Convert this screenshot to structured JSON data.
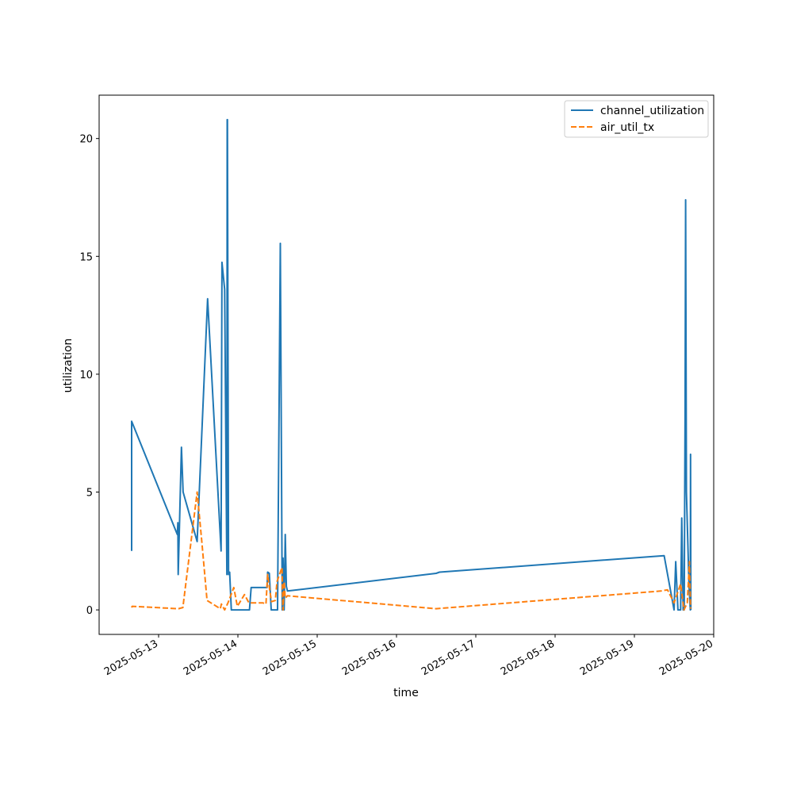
{
  "chart_data": {
    "type": "line",
    "title": "",
    "xlabel": "time",
    "ylabel": "utilization",
    "x_type": "datetime",
    "xlim": [
      "2025-05-12T06:00",
      "2025-05-20T00:00"
    ],
    "ylim": [
      -1.04,
      21.84
    ],
    "x_ticks": [
      "2025-05-13",
      "2025-05-14",
      "2025-05-15",
      "2025-05-16",
      "2025-05-17",
      "2025-05-18",
      "2025-05-19",
      "2025-05-20"
    ],
    "y_ticks": [
      0,
      5,
      10,
      15,
      20
    ],
    "grid": false,
    "legend_position": "top-right",
    "series": [
      {
        "name": "channel_utilization",
        "color": "#1f77b4",
        "style": "solid",
        "points": [
          [
            "2025-05-12T15:50",
            2.5
          ],
          [
            "2025-05-12T15:50",
            8.0
          ],
          [
            "2025-05-13T05:40",
            3.2
          ],
          [
            "2025-05-13T05:50",
            3.7
          ],
          [
            "2025-05-13T05:55",
            1.5
          ],
          [
            "2025-05-13T06:20",
            3.7
          ],
          [
            "2025-05-13T06:55",
            6.9
          ],
          [
            "2025-05-13T07:25",
            5.0
          ],
          [
            "2025-05-13T11:40",
            2.9
          ],
          [
            "2025-05-13T14:50",
            13.2
          ],
          [
            "2025-05-13T18:55",
            2.5
          ],
          [
            "2025-05-13T19:10",
            14.75
          ],
          [
            "2025-05-13T20:00",
            13.6
          ],
          [
            "2025-05-13T20:40",
            1.5
          ],
          [
            "2025-05-13T20:45",
            20.8
          ],
          [
            "2025-05-13T20:50",
            20.8
          ],
          [
            "2025-05-13T21:10",
            1.5
          ],
          [
            "2025-05-13T21:30",
            1.6
          ],
          [
            "2025-05-13T22:00",
            0.0
          ],
          [
            "2025-05-14T03:30",
            0.0
          ],
          [
            "2025-05-14T04:00",
            0.95
          ],
          [
            "2025-05-14T08:50",
            0.95
          ],
          [
            "2025-05-14T09:00",
            1.6
          ],
          [
            "2025-05-14T09:30",
            1.55
          ],
          [
            "2025-05-14T10:05",
            0.0
          ],
          [
            "2025-05-14T12:00",
            0.0
          ],
          [
            "2025-05-14T12:50",
            15.55
          ],
          [
            "2025-05-14T13:25",
            0.0
          ],
          [
            "2025-05-14T13:40",
            2.2
          ],
          [
            "2025-05-14T14:00",
            0.0
          ],
          [
            "2025-05-14T14:20",
            3.2
          ],
          [
            "2025-05-14T14:40",
            1.0
          ],
          [
            "2025-05-14T15:00",
            0.8
          ],
          [
            "2025-05-16T12:00",
            1.55
          ],
          [
            "2025-05-16T13:00",
            1.6
          ],
          [
            "2025-05-19T09:00",
            2.3
          ],
          [
            "2025-05-19T12:00",
            0.0
          ],
          [
            "2025-05-19T12:30",
            2.05
          ],
          [
            "2025-05-19T13:10",
            0.0
          ],
          [
            "2025-05-19T14:00",
            0.0
          ],
          [
            "2025-05-19T14:20",
            3.9
          ],
          [
            "2025-05-19T14:45",
            0.0
          ],
          [
            "2025-05-19T15:05",
            0.0
          ],
          [
            "2025-05-19T15:20",
            8.1
          ],
          [
            "2025-05-19T15:30",
            17.4
          ],
          [
            "2025-05-19T15:45",
            5.0
          ],
          [
            "2025-05-19T16:30",
            1.1
          ],
          [
            "2025-05-19T16:55",
            0.0
          ],
          [
            "2025-05-19T17:00",
            6.6
          ],
          [
            "2025-05-19T17:05",
            0.0
          ]
        ]
      },
      {
        "name": "air_util_tx",
        "color": "#ff7f0e",
        "style": "dashed",
        "points": [
          [
            "2025-05-12T15:50",
            0.1
          ],
          [
            "2025-05-12T16:00",
            0.15
          ],
          [
            "2025-05-13T06:00",
            0.05
          ],
          [
            "2025-05-13T07:20",
            0.1
          ],
          [
            "2025-05-13T10:20",
            3.5
          ],
          [
            "2025-05-13T11:40",
            5.0
          ],
          [
            "2025-05-13T13:00",
            3.0
          ],
          [
            "2025-05-13T14:40",
            0.4
          ],
          [
            "2025-05-13T18:40",
            0.05
          ],
          [
            "2025-05-13T19:00",
            0.25
          ],
          [
            "2025-05-13T20:00",
            0.0
          ],
          [
            "2025-05-13T21:00",
            0.3
          ],
          [
            "2025-05-13T22:45",
            0.95
          ],
          [
            "2025-05-13T23:50",
            0.15
          ],
          [
            "2025-05-14T02:00",
            0.65
          ],
          [
            "2025-05-14T03:20",
            0.3
          ],
          [
            "2025-05-14T07:30",
            0.3
          ],
          [
            "2025-05-14T08:30",
            0.25
          ],
          [
            "2025-05-14T09:00",
            1.5
          ],
          [
            "2025-05-14T09:40",
            0.8
          ],
          [
            "2025-05-14T10:10",
            0.35
          ],
          [
            "2025-05-14T11:20",
            0.4
          ],
          [
            "2025-05-14T11:50",
            1.2
          ],
          [
            "2025-05-14T12:50",
            1.6
          ],
          [
            "2025-05-14T13:20",
            1.8
          ],
          [
            "2025-05-14T13:40",
            0.0
          ],
          [
            "2025-05-14T14:00",
            1.2
          ],
          [
            "2025-05-14T14:20",
            0.5
          ],
          [
            "2025-05-14T15:00",
            0.6
          ],
          [
            "2025-05-16T12:00",
            0.05
          ],
          [
            "2025-05-19T08:00",
            0.8
          ],
          [
            "2025-05-19T10:00",
            0.85
          ],
          [
            "2025-05-19T12:00",
            0.3
          ],
          [
            "2025-05-19T14:00",
            1.1
          ],
          [
            "2025-05-19T15:00",
            0.0
          ],
          [
            "2025-05-19T16:00",
            0.3
          ],
          [
            "2025-05-19T16:40",
            2.05
          ],
          [
            "2025-05-19T17:00",
            0.05
          ]
        ]
      }
    ]
  }
}
